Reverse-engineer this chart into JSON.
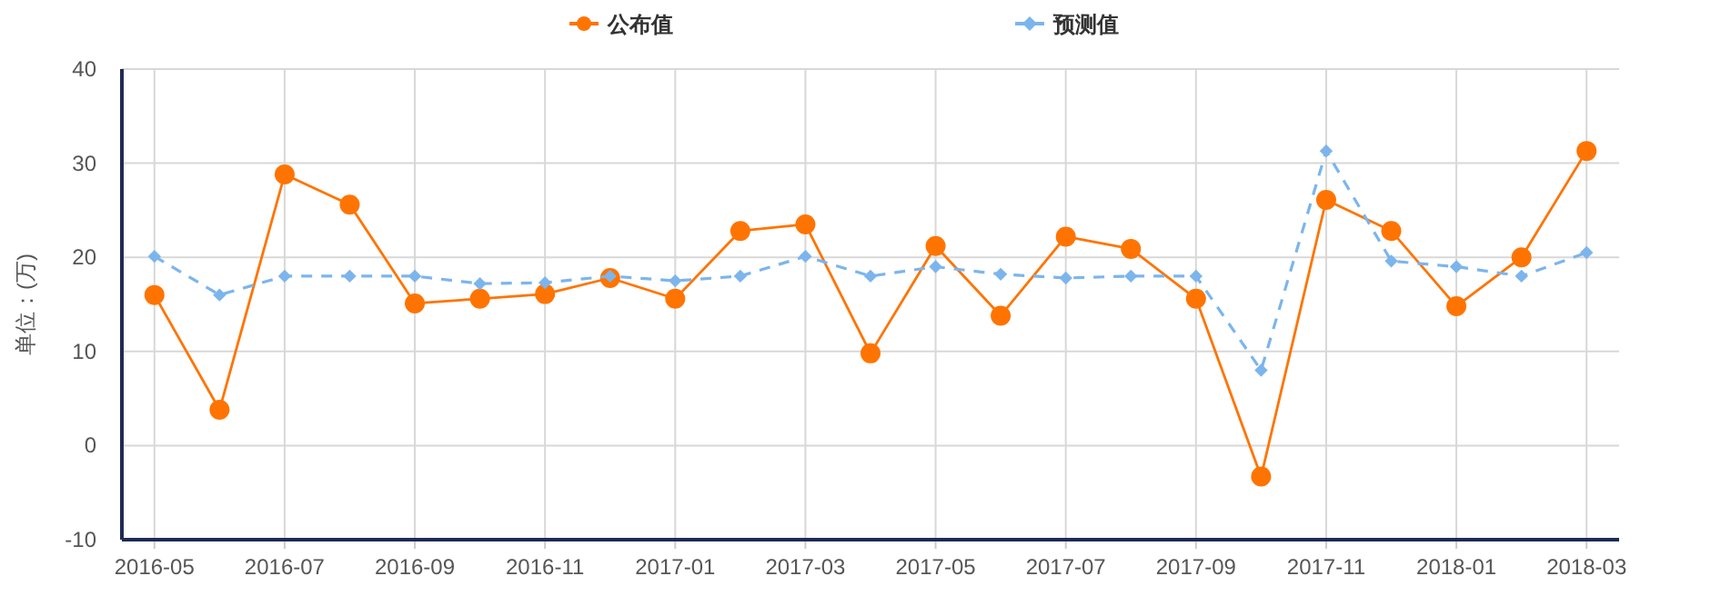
{
  "chart_data": {
    "type": "line",
    "ylabel": "单位：(万)",
    "categories": [
      "2016-05",
      null,
      "2016-07",
      null,
      "2016-09",
      null,
      "2016-11",
      null,
      "2017-01",
      null,
      "2017-03",
      null,
      "2017-05",
      null,
      "2017-07",
      null,
      "2017-09",
      null,
      "2017-11",
      null,
      "2018-01",
      null,
      "2018-03"
    ],
    "series": [
      {
        "name": "公布值",
        "color": "#ff7400",
        "marker": "circle",
        "line_style": "solid",
        "values": [
          16,
          3.8,
          28.8,
          25.6,
          15.1,
          15.6,
          16.1,
          17.8,
          15.6,
          22.8,
          23.5,
          9.8,
          21.2,
          13.8,
          22.2,
          20.9,
          15.6,
          -3.3,
          26.1,
          22.8,
          14.8,
          20.0,
          31.3
        ]
      },
      {
        "name": "预测值",
        "color": "#7cb5ec",
        "marker": "diamond",
        "line_style": "dashed",
        "values": [
          20.1,
          16,
          18,
          18,
          18,
          17.2,
          17.3,
          18,
          17.5,
          18,
          20.1,
          18,
          19,
          18.2,
          17.8,
          18,
          18,
          8,
          31.3,
          19.6,
          19,
          18,
          20.5
        ]
      }
    ],
    "ylim": [
      -10,
      40
    ],
    "yticks": [
      -10,
      0,
      10,
      20,
      30,
      40
    ],
    "grid": true,
    "legend": "top"
  }
}
